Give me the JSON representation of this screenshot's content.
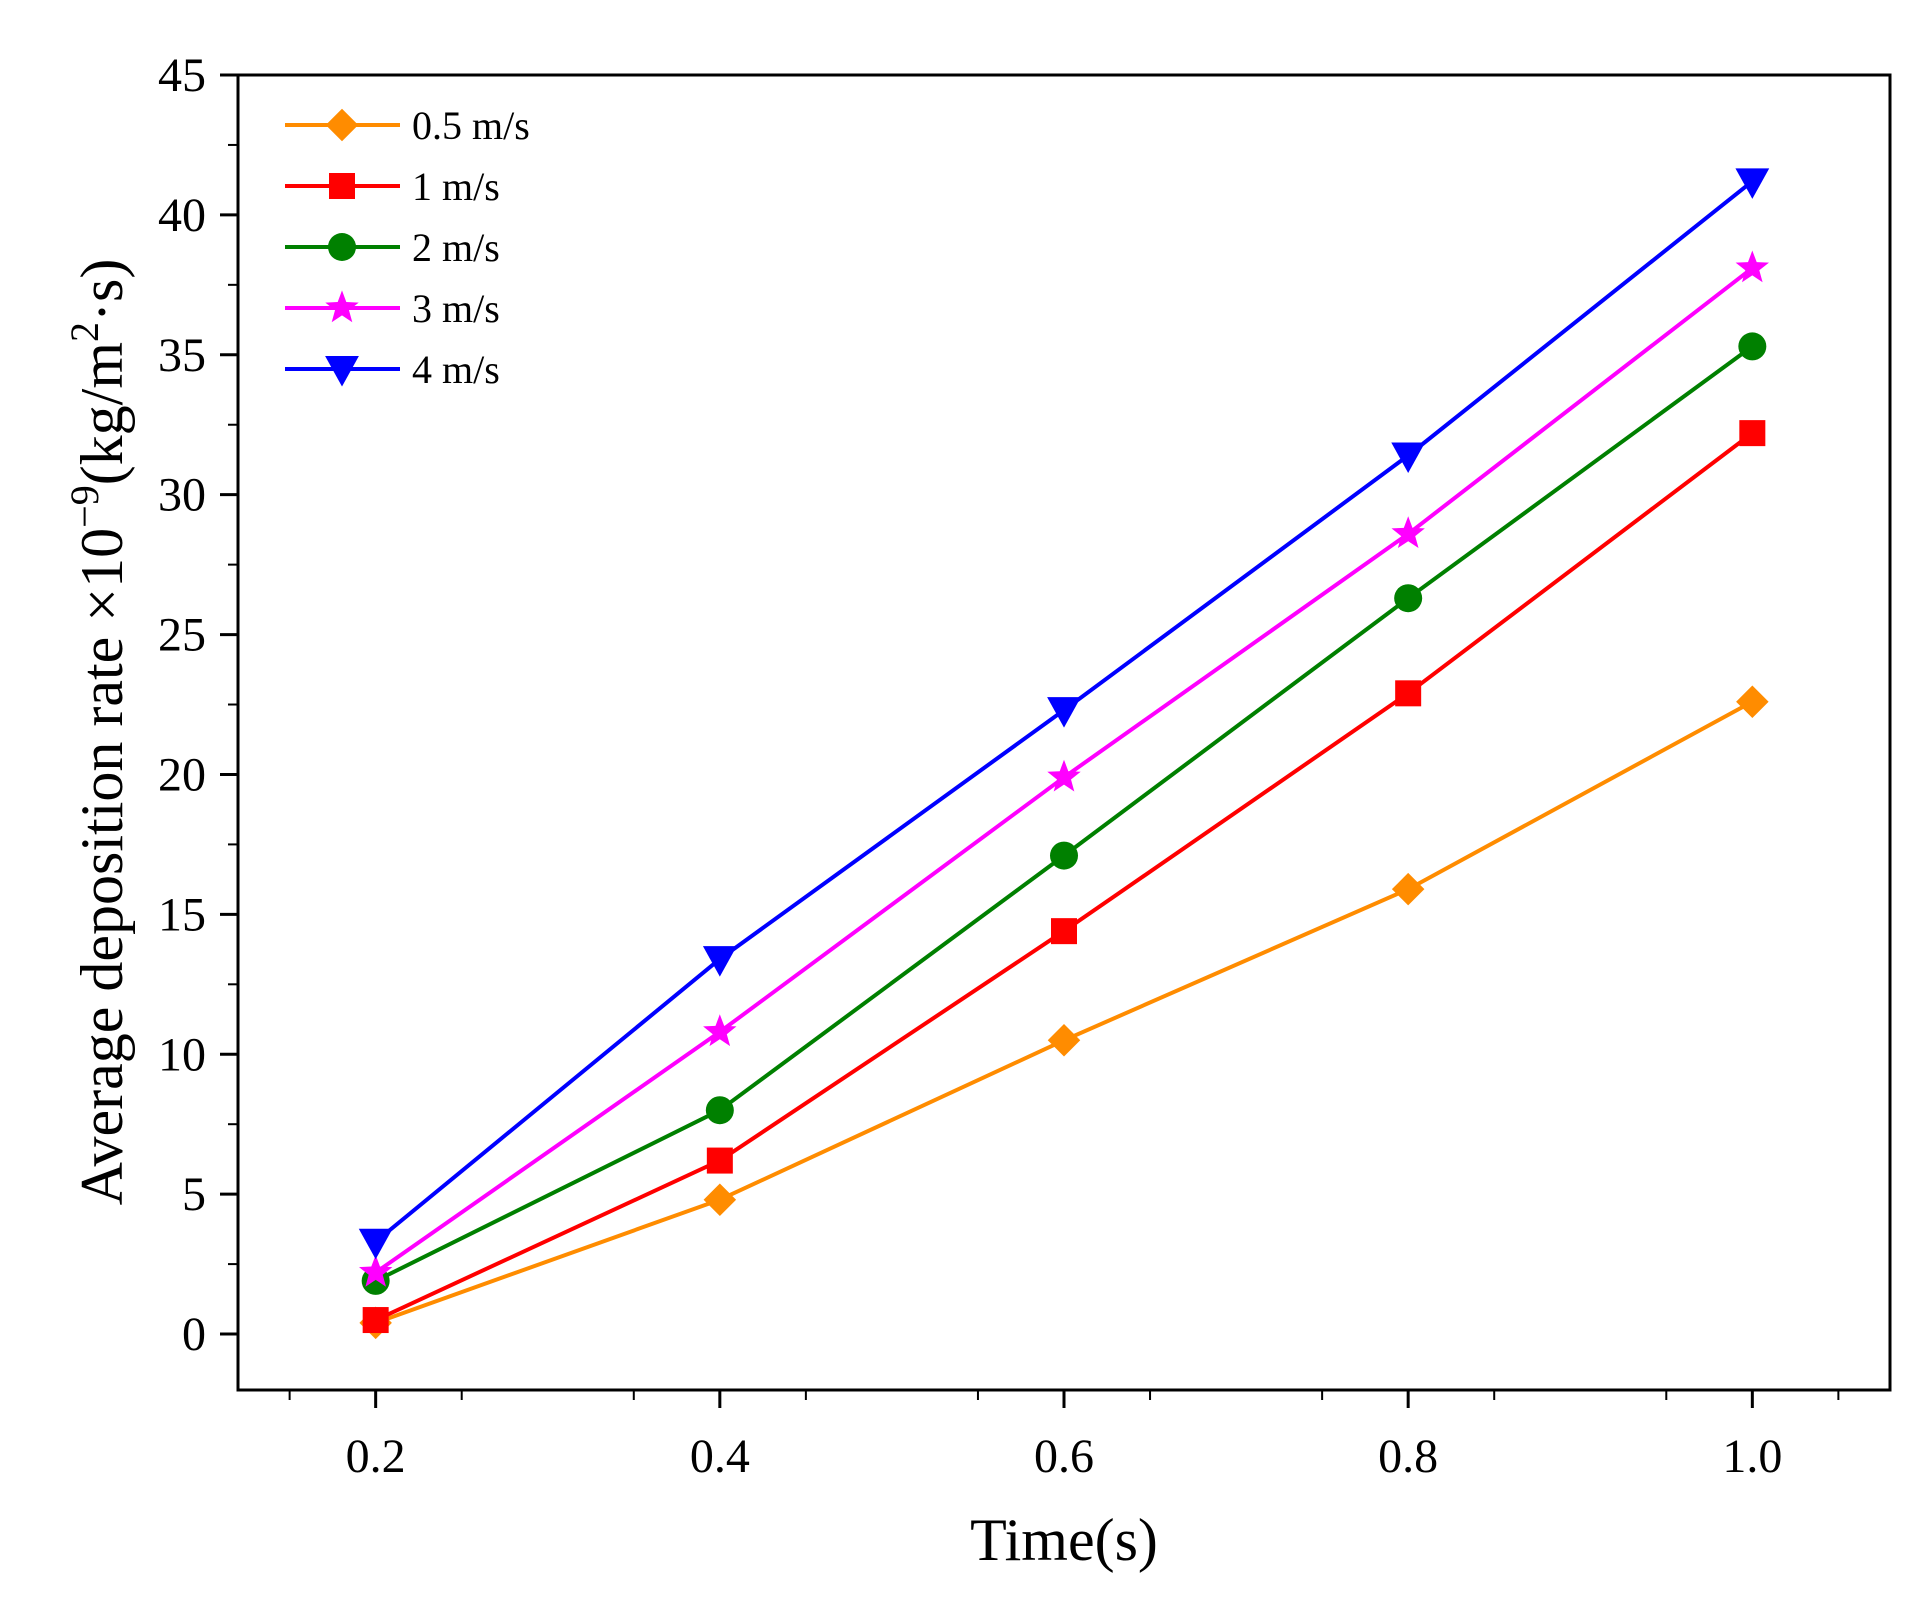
{
  "chart_data": {
    "type": "line",
    "title": "",
    "xlabel": "Time(s)",
    "ylabel": {
      "prefix": "Average deposition rate ×10",
      "exp": "−9",
      "unit_start": "(kg/m",
      "unit_exp": "2",
      "unit_end": "·s)"
    },
    "x": [
      0.2,
      0.4,
      0.6,
      0.8,
      1.0
    ],
    "xticks": [
      "0.2",
      "0.4",
      "0.6",
      "0.8",
      "1.0"
    ],
    "xlim": [
      0.12,
      1.08
    ],
    "yticks": [
      "0",
      "5",
      "10",
      "15",
      "20",
      "25",
      "30",
      "35",
      "40",
      "45"
    ],
    "ylim": [
      -2,
      45
    ],
    "grid": false,
    "legend_position": "top-left",
    "series": [
      {
        "name": "0.5 m/s",
        "color": "#ff8c00",
        "marker": "diamond",
        "values": [
          0.4,
          4.8,
          10.5,
          15.9,
          22.6
        ]
      },
      {
        "name": "1 m/s",
        "color": "#ff0000",
        "marker": "square",
        "values": [
          0.5,
          6.2,
          14.4,
          22.9,
          32.2
        ]
      },
      {
        "name": "2 m/s",
        "color": "#008000",
        "marker": "circle",
        "values": [
          1.9,
          8.0,
          17.1,
          26.3,
          35.3
        ]
      },
      {
        "name": "3 m/s",
        "color": "#ff00ff",
        "marker": "star",
        "values": [
          2.2,
          10.8,
          19.9,
          28.6,
          38.1
        ]
      },
      {
        "name": "4 m/s",
        "color": "#0000ff",
        "marker": "triangle-down",
        "values": [
          3.3,
          13.4,
          22.3,
          31.4,
          41.2
        ]
      }
    ]
  }
}
